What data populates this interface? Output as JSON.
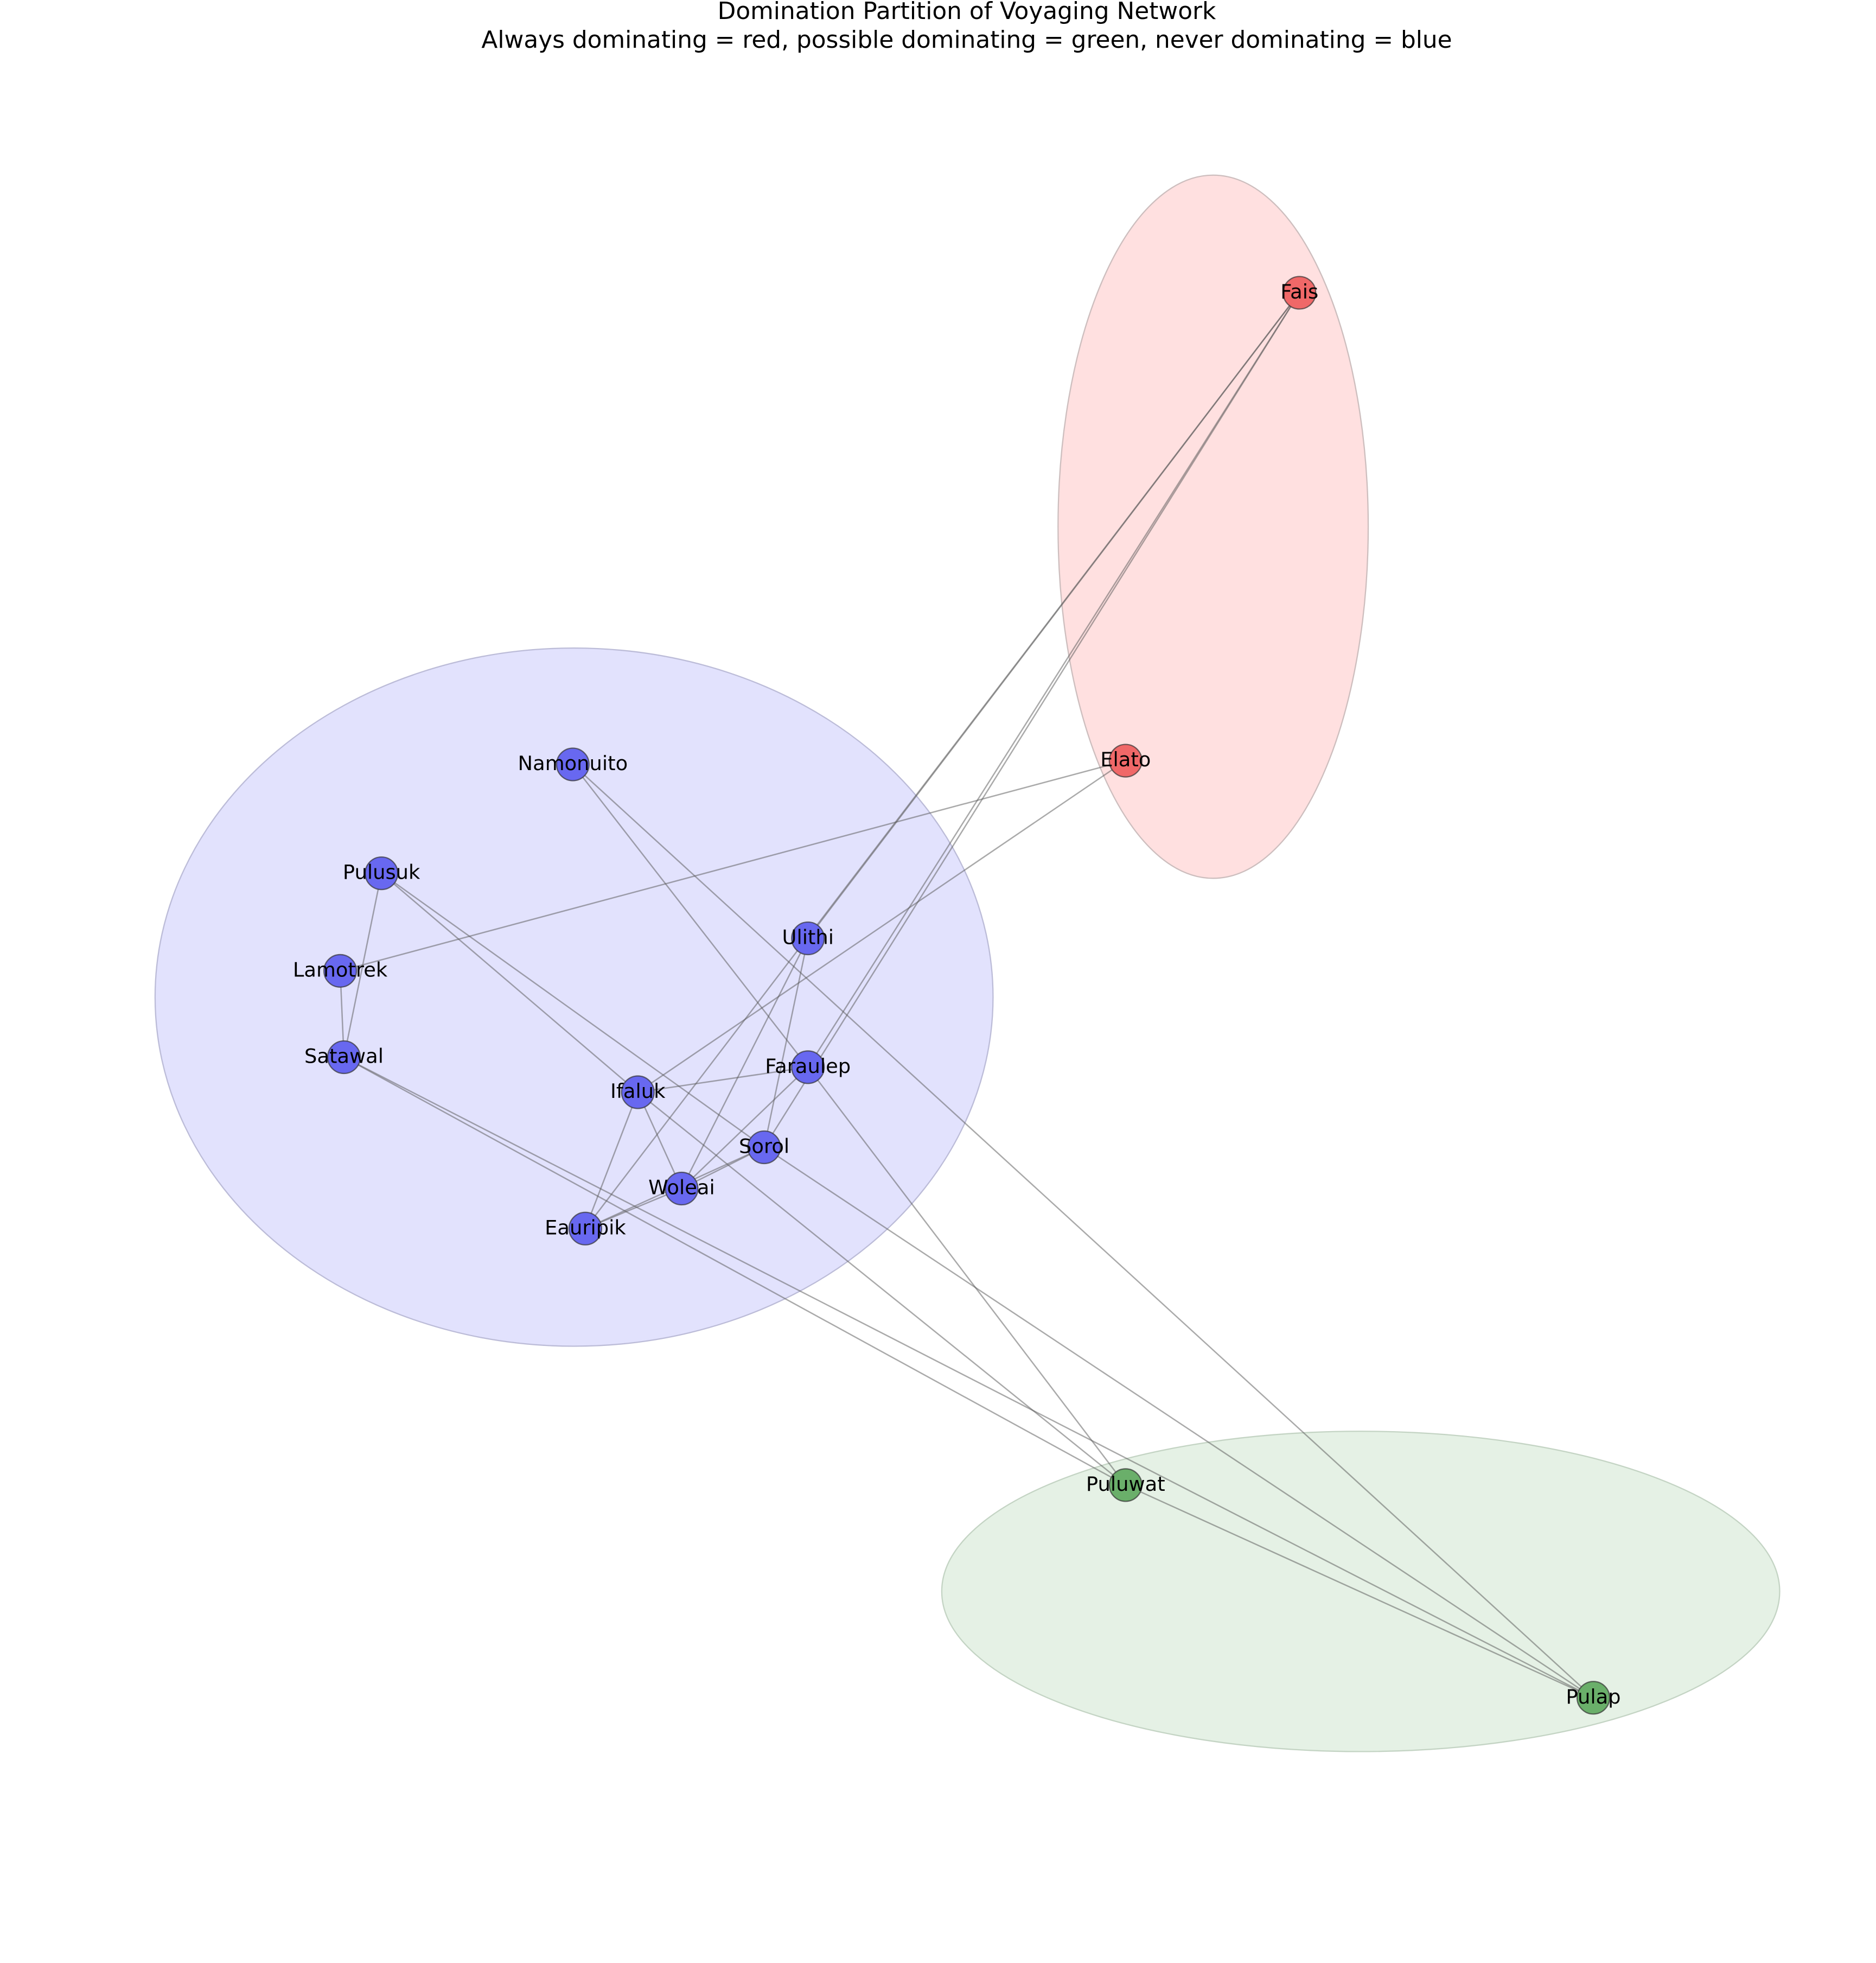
{
  "title": "Domination Partition of Voyaging Network",
  "subtitle": "Always dominating = red, possible dominating = green, never dominating = blue",
  "nodes": [
    {
      "label": "Fais"
    },
    {
      "label": "Elato"
    },
    {
      "label": "Namonuito"
    },
    {
      "label": "Pulusuk"
    },
    {
      "label": "Lamotrek"
    },
    {
      "label": "Ulithi"
    },
    {
      "label": "Satawal"
    },
    {
      "label": "Faraulep"
    },
    {
      "label": "Ifaluk"
    },
    {
      "label": "Sorol"
    },
    {
      "label": "Woleai"
    },
    {
      "label": "Eauripik"
    },
    {
      "label": "Puluwat"
    },
    {
      "label": "Pulap"
    }
  ]
}
